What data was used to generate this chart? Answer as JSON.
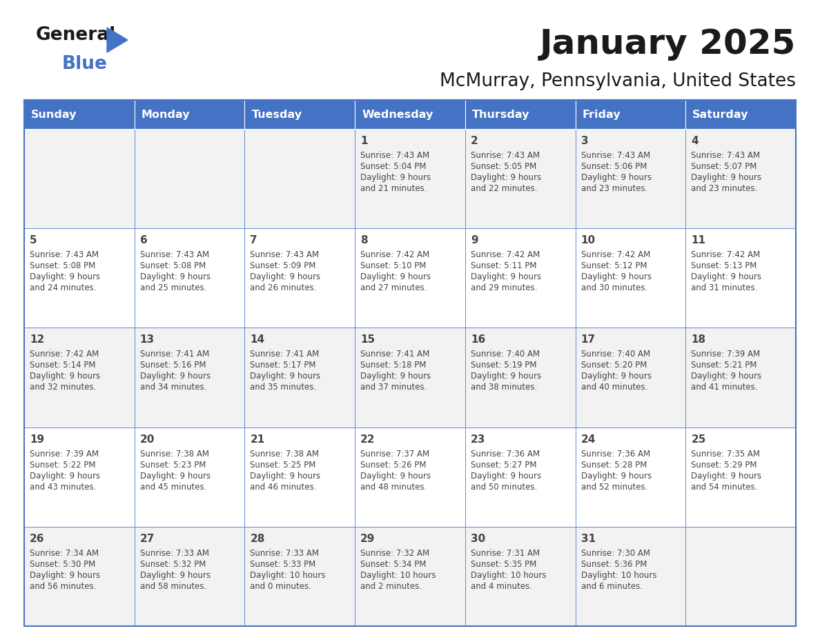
{
  "title": "January 2025",
  "subtitle": "McMurray, Pennsylvania, United States",
  "days_of_week": [
    "Sunday",
    "Monday",
    "Tuesday",
    "Wednesday",
    "Thursday",
    "Friday",
    "Saturday"
  ],
  "header_bg": "#4472C4",
  "header_text_color": "#FFFFFF",
  "cell_bg_even": "#F2F2F2",
  "cell_bg_odd": "#FFFFFF",
  "cell_text_color": "#444444",
  "border_color": "#4472C4",
  "title_color": "#1a1a1a",
  "subtitle_color": "#1a1a1a",
  "calendar_data": [
    [
      {
        "day": null,
        "sunrise": null,
        "sunset": null,
        "daylight_line1": null,
        "daylight_line2": null
      },
      {
        "day": null,
        "sunrise": null,
        "sunset": null,
        "daylight_line1": null,
        "daylight_line2": null
      },
      {
        "day": null,
        "sunrise": null,
        "sunset": null,
        "daylight_line1": null,
        "daylight_line2": null
      },
      {
        "day": "1",
        "sunrise": "Sunrise: 7:43 AM",
        "sunset": "Sunset: 5:04 PM",
        "daylight_line1": "Daylight: 9 hours",
        "daylight_line2": "and 21 minutes."
      },
      {
        "day": "2",
        "sunrise": "Sunrise: 7:43 AM",
        "sunset": "Sunset: 5:05 PM",
        "daylight_line1": "Daylight: 9 hours",
        "daylight_line2": "and 22 minutes."
      },
      {
        "day": "3",
        "sunrise": "Sunrise: 7:43 AM",
        "sunset": "Sunset: 5:06 PM",
        "daylight_line1": "Daylight: 9 hours",
        "daylight_line2": "and 23 minutes."
      },
      {
        "day": "4",
        "sunrise": "Sunrise: 7:43 AM",
        "sunset": "Sunset: 5:07 PM",
        "daylight_line1": "Daylight: 9 hours",
        "daylight_line2": "and 23 minutes."
      }
    ],
    [
      {
        "day": "5",
        "sunrise": "Sunrise: 7:43 AM",
        "sunset": "Sunset: 5:08 PM",
        "daylight_line1": "Daylight: 9 hours",
        "daylight_line2": "and 24 minutes."
      },
      {
        "day": "6",
        "sunrise": "Sunrise: 7:43 AM",
        "sunset": "Sunset: 5:08 PM",
        "daylight_line1": "Daylight: 9 hours",
        "daylight_line2": "and 25 minutes."
      },
      {
        "day": "7",
        "sunrise": "Sunrise: 7:43 AM",
        "sunset": "Sunset: 5:09 PM",
        "daylight_line1": "Daylight: 9 hours",
        "daylight_line2": "and 26 minutes."
      },
      {
        "day": "8",
        "sunrise": "Sunrise: 7:42 AM",
        "sunset": "Sunset: 5:10 PM",
        "daylight_line1": "Daylight: 9 hours",
        "daylight_line2": "and 27 minutes."
      },
      {
        "day": "9",
        "sunrise": "Sunrise: 7:42 AM",
        "sunset": "Sunset: 5:11 PM",
        "daylight_line1": "Daylight: 9 hours",
        "daylight_line2": "and 29 minutes."
      },
      {
        "day": "10",
        "sunrise": "Sunrise: 7:42 AM",
        "sunset": "Sunset: 5:12 PM",
        "daylight_line1": "Daylight: 9 hours",
        "daylight_line2": "and 30 minutes."
      },
      {
        "day": "11",
        "sunrise": "Sunrise: 7:42 AM",
        "sunset": "Sunset: 5:13 PM",
        "daylight_line1": "Daylight: 9 hours",
        "daylight_line2": "and 31 minutes."
      }
    ],
    [
      {
        "day": "12",
        "sunrise": "Sunrise: 7:42 AM",
        "sunset": "Sunset: 5:14 PM",
        "daylight_line1": "Daylight: 9 hours",
        "daylight_line2": "and 32 minutes."
      },
      {
        "day": "13",
        "sunrise": "Sunrise: 7:41 AM",
        "sunset": "Sunset: 5:16 PM",
        "daylight_line1": "Daylight: 9 hours",
        "daylight_line2": "and 34 minutes."
      },
      {
        "day": "14",
        "sunrise": "Sunrise: 7:41 AM",
        "sunset": "Sunset: 5:17 PM",
        "daylight_line1": "Daylight: 9 hours",
        "daylight_line2": "and 35 minutes."
      },
      {
        "day": "15",
        "sunrise": "Sunrise: 7:41 AM",
        "sunset": "Sunset: 5:18 PM",
        "daylight_line1": "Daylight: 9 hours",
        "daylight_line2": "and 37 minutes."
      },
      {
        "day": "16",
        "sunrise": "Sunrise: 7:40 AM",
        "sunset": "Sunset: 5:19 PM",
        "daylight_line1": "Daylight: 9 hours",
        "daylight_line2": "and 38 minutes."
      },
      {
        "day": "17",
        "sunrise": "Sunrise: 7:40 AM",
        "sunset": "Sunset: 5:20 PM",
        "daylight_line1": "Daylight: 9 hours",
        "daylight_line2": "and 40 minutes."
      },
      {
        "day": "18",
        "sunrise": "Sunrise: 7:39 AM",
        "sunset": "Sunset: 5:21 PM",
        "daylight_line1": "Daylight: 9 hours",
        "daylight_line2": "and 41 minutes."
      }
    ],
    [
      {
        "day": "19",
        "sunrise": "Sunrise: 7:39 AM",
        "sunset": "Sunset: 5:22 PM",
        "daylight_line1": "Daylight: 9 hours",
        "daylight_line2": "and 43 minutes."
      },
      {
        "day": "20",
        "sunrise": "Sunrise: 7:38 AM",
        "sunset": "Sunset: 5:23 PM",
        "daylight_line1": "Daylight: 9 hours",
        "daylight_line2": "and 45 minutes."
      },
      {
        "day": "21",
        "sunrise": "Sunrise: 7:38 AM",
        "sunset": "Sunset: 5:25 PM",
        "daylight_line1": "Daylight: 9 hours",
        "daylight_line2": "and 46 minutes."
      },
      {
        "day": "22",
        "sunrise": "Sunrise: 7:37 AM",
        "sunset": "Sunset: 5:26 PM",
        "daylight_line1": "Daylight: 9 hours",
        "daylight_line2": "and 48 minutes."
      },
      {
        "day": "23",
        "sunrise": "Sunrise: 7:36 AM",
        "sunset": "Sunset: 5:27 PM",
        "daylight_line1": "Daylight: 9 hours",
        "daylight_line2": "and 50 minutes."
      },
      {
        "day": "24",
        "sunrise": "Sunrise: 7:36 AM",
        "sunset": "Sunset: 5:28 PM",
        "daylight_line1": "Daylight: 9 hours",
        "daylight_line2": "and 52 minutes."
      },
      {
        "day": "25",
        "sunrise": "Sunrise: 7:35 AM",
        "sunset": "Sunset: 5:29 PM",
        "daylight_line1": "Daylight: 9 hours",
        "daylight_line2": "and 54 minutes."
      }
    ],
    [
      {
        "day": "26",
        "sunrise": "Sunrise: 7:34 AM",
        "sunset": "Sunset: 5:30 PM",
        "daylight_line1": "Daylight: 9 hours",
        "daylight_line2": "and 56 minutes."
      },
      {
        "day": "27",
        "sunrise": "Sunrise: 7:33 AM",
        "sunset": "Sunset: 5:32 PM",
        "daylight_line1": "Daylight: 9 hours",
        "daylight_line2": "and 58 minutes."
      },
      {
        "day": "28",
        "sunrise": "Sunrise: 7:33 AM",
        "sunset": "Sunset: 5:33 PM",
        "daylight_line1": "Daylight: 10 hours",
        "daylight_line2": "and 0 minutes."
      },
      {
        "day": "29",
        "sunrise": "Sunrise: 7:32 AM",
        "sunset": "Sunset: 5:34 PM",
        "daylight_line1": "Daylight: 10 hours",
        "daylight_line2": "and 2 minutes."
      },
      {
        "day": "30",
        "sunrise": "Sunrise: 7:31 AM",
        "sunset": "Sunset: 5:35 PM",
        "daylight_line1": "Daylight: 10 hours",
        "daylight_line2": "and 4 minutes."
      },
      {
        "day": "31",
        "sunrise": "Sunrise: 7:30 AM",
        "sunset": "Sunset: 5:36 PM",
        "daylight_line1": "Daylight: 10 hours",
        "daylight_line2": "and 6 minutes."
      },
      {
        "day": null,
        "sunrise": null,
        "sunset": null,
        "daylight_line1": null,
        "daylight_line2": null
      }
    ]
  ]
}
